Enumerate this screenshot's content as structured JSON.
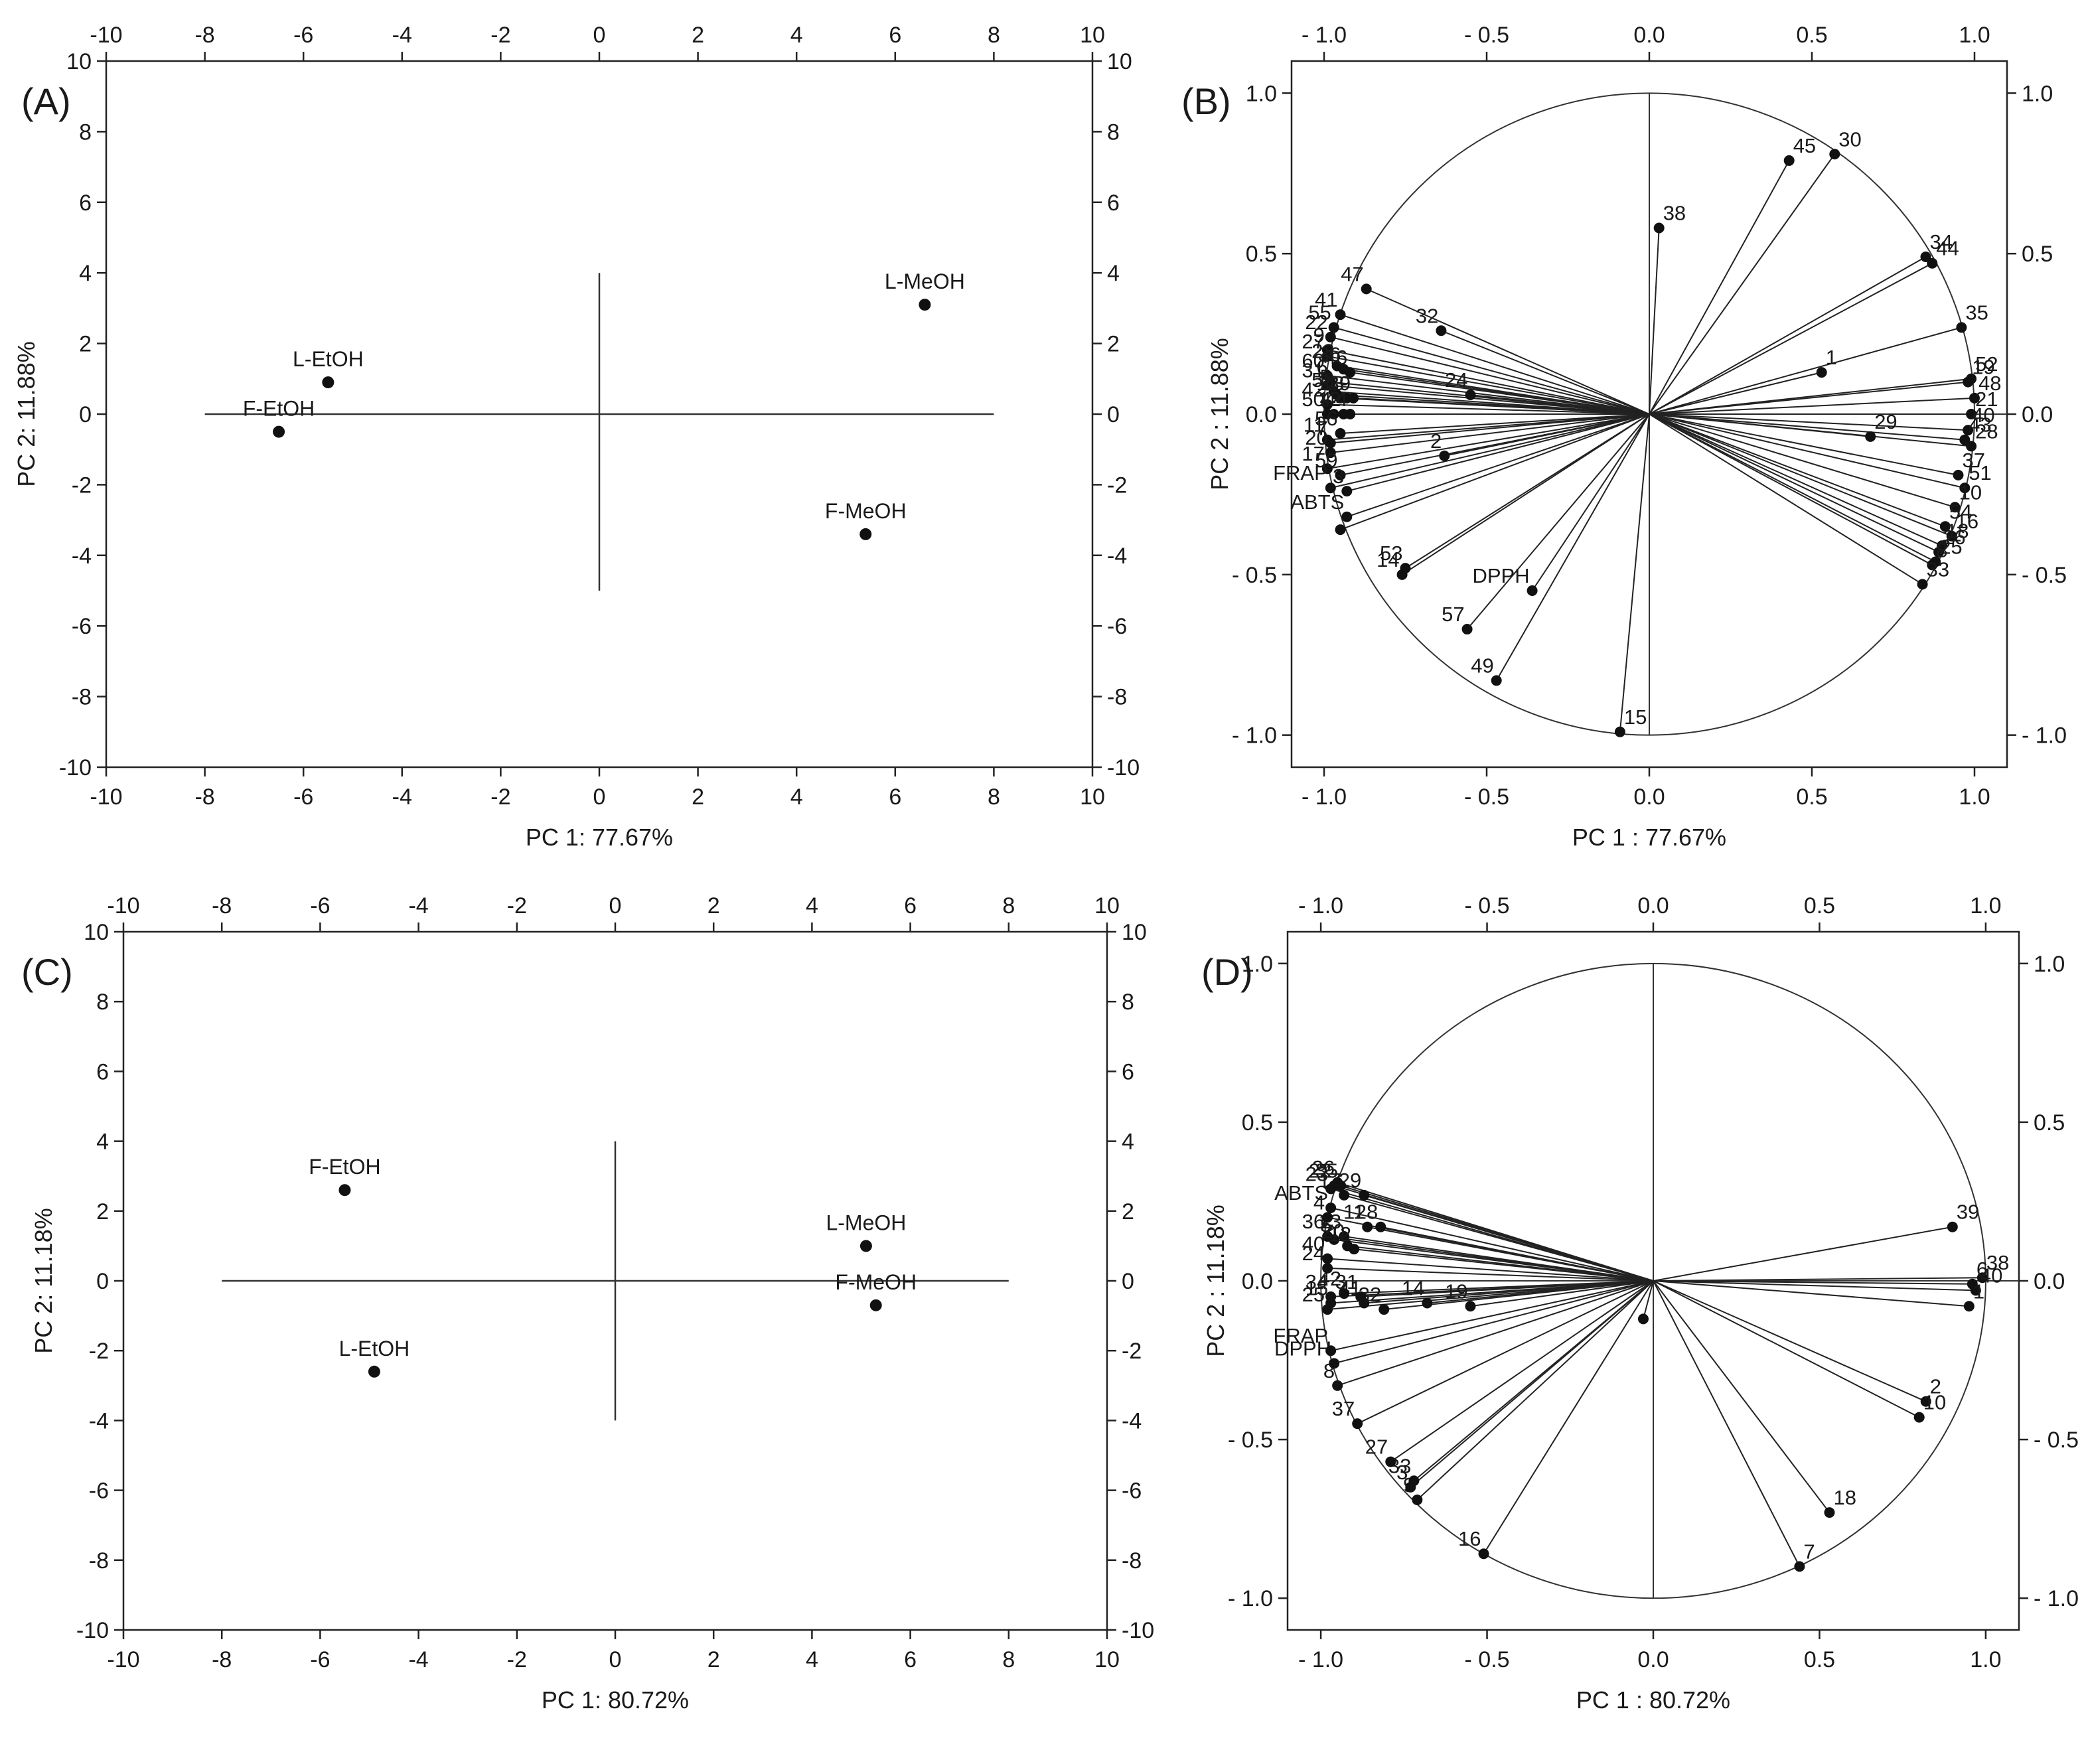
{
  "chart_data": [
    {
      "panel": "(A)",
      "type": "scatter",
      "xlabel": "PC 1: 77.67%",
      "ylabel": "PC 2: 11.88%",
      "xlim": [
        -10,
        10
      ],
      "ylim": [
        -10,
        10
      ],
      "x_ticks": [
        -10,
        -8,
        -6,
        -4,
        -2,
        0,
        2,
        4,
        6,
        8,
        10
      ],
      "y_ticks": [
        -10,
        -8,
        -6,
        -4,
        -2,
        0,
        2,
        4,
        6,
        8,
        10
      ],
      "points": [
        {
          "label": "L-MeOH",
          "x": 6.6,
          "y": 3.1
        },
        {
          "label": "L-EtOH",
          "x": -5.5,
          "y": 0.9
        },
        {
          "label": "F-EtOH",
          "x": -6.5,
          "y": -0.5
        },
        {
          "label": "F-MeOH",
          "x": 5.4,
          "y": -3.4
        }
      ]
    },
    {
      "panel": "(B)",
      "type": "scatter",
      "xlabel": "PC 1 : 77.67%",
      "ylabel": "PC 2 : 11.88%",
      "xlim": [
        -1.1,
        1.1
      ],
      "ylim": [
        -1.1,
        1.1
      ],
      "x_ticks": [
        -1.0,
        -0.5,
        0.0,
        0.5,
        1.0
      ],
      "y_ticks": [
        -1.0,
        -0.5,
        0.0,
        0.5,
        1.0
      ],
      "circle_radius": 1.0,
      "points": [
        {
          "label": "45",
          "x": 0.43,
          "y": 0.79
        },
        {
          "label": "30",
          "x": 0.57,
          "y": 0.81
        },
        {
          "label": "38",
          "x": 0.03,
          "y": 0.58
        },
        {
          "label": "34",
          "x": 0.85,
          "y": 0.49
        },
        {
          "label": "44",
          "x": 0.87,
          "y": 0.47
        },
        {
          "label": "35",
          "x": 0.96,
          "y": 0.27
        },
        {
          "label": "1",
          "x": 0.53,
          "y": 0.13
        },
        {
          "label": "19",
          "x": 0.98,
          "y": 0.1
        },
        {
          "label": "52",
          "x": 0.99,
          "y": 0.11
        },
        {
          "label": "48",
          "x": 1.0,
          "y": 0.05
        },
        {
          "label": "21",
          "x": 0.99,
          "y": 0.0
        },
        {
          "label": "40",
          "x": 0.98,
          "y": -0.05
        },
        {
          "label": "28",
          "x": 0.99,
          "y": -0.1
        },
        {
          "label": "29",
          "x": 0.68,
          "y": -0.07
        },
        {
          "label": "43",
          "x": 0.97,
          "y": -0.08
        },
        {
          "label": "37",
          "x": 0.95,
          "y": -0.19
        },
        {
          "label": "51",
          "x": 0.97,
          "y": -0.23
        },
        {
          "label": "10",
          "x": 0.94,
          "y": -0.29
        },
        {
          "label": "16",
          "x": 0.93,
          "y": -0.38
        },
        {
          "label": "54",
          "x": 0.91,
          "y": -0.35
        },
        {
          "label": "18",
          "x": 0.9,
          "y": -0.41
        },
        {
          "label": "26",
          "x": 0.89,
          "y": -0.43
        },
        {
          "label": "25",
          "x": 0.88,
          "y": -0.46
        },
        {
          "label": "8",
          "x": 0.87,
          "y": -0.47
        },
        {
          "label": "33",
          "x": 0.84,
          "y": -0.53
        },
        {
          "label": "15",
          "x": -0.09,
          "y": -0.99
        },
        {
          "label": "49",
          "x": -0.47,
          "y": -0.83
        },
        {
          "label": "57",
          "x": -0.56,
          "y": -0.67
        },
        {
          "label": "DPPH",
          "x": -0.36,
          "y": -0.55
        },
        {
          "label": "53",
          "x": -0.75,
          "y": -0.48
        },
        {
          "label": "14",
          "x": -0.76,
          "y": -0.5
        },
        {
          "label": "2",
          "x": -0.63,
          "y": -0.13
        },
        {
          "label": "24",
          "x": -0.55,
          "y": 0.06
        },
        {
          "label": "32",
          "x": -0.64,
          "y": 0.26
        },
        {
          "label": "47",
          "x": -0.87,
          "y": 0.39
        },
        {
          "label": "41",
          "x": -0.95,
          "y": 0.31
        },
        {
          "label": "55",
          "x": -0.97,
          "y": 0.27
        },
        {
          "label": "22",
          "x": -0.98,
          "y": 0.24
        },
        {
          "label": "9",
          "x": -0.99,
          "y": 0.2
        },
        {
          "label": "27",
          "x": -0.99,
          "y": 0.18
        },
        {
          "label": "23",
          "x": -0.96,
          "y": 0.15
        },
        {
          "label": "36",
          "x": -0.94,
          "y": 0.14
        },
        {
          "label": "46",
          "x": -0.92,
          "y": 0.13
        },
        {
          "label": "60",
          "x": -0.99,
          "y": 0.12
        },
        {
          "label": "6",
          "x": -0.98,
          "y": 0.1
        },
        {
          "label": "31",
          "x": -0.99,
          "y": 0.09
        },
        {
          "label": "5",
          "x": -0.97,
          "y": 0.07
        },
        {
          "label": "58",
          "x": -0.96,
          "y": 0.06
        },
        {
          "label": "11",
          "x": -0.95,
          "y": 0.05
        },
        {
          "label": "13",
          "x": -0.93,
          "y": 0.05
        },
        {
          "label": "39",
          "x": -0.91,
          "y": 0.05
        },
        {
          "label": "42",
          "x": -0.99,
          "y": 0.03
        },
        {
          "label": "50",
          "x": -0.99,
          "y": 0.0
        },
        {
          "label": "4",
          "x": -0.97,
          "y": 0.0
        },
        {
          "label": "12",
          "x": -0.94,
          "y": 0.0
        },
        {
          "label": "44",
          "x": -0.92,
          "y": 0.0
        },
        {
          "label": "56",
          "x": -0.95,
          "y": -0.06
        },
        {
          "label": "11",
          "x": -0.99,
          "y": -0.08
        },
        {
          "label": "7",
          "x": -0.98,
          "y": -0.09
        },
        {
          "label": "20",
          "x": -0.98,
          "y": -0.12
        },
        {
          "label": "17",
          "x": -0.99,
          "y": -0.17
        },
        {
          "label": "59",
          "x": -0.95,
          "y": -0.19
        },
        {
          "label": "3",
          "x": -0.93,
          "y": -0.24
        },
        {
          "label": "FRAP",
          "x": -0.98,
          "y": -0.23
        },
        {
          "label": "ABTS",
          "x": -0.93,
          "y": -0.32
        },
        {
          "label": "",
          "x": -0.95,
          "y": -0.36
        }
      ]
    },
    {
      "panel": "(C)",
      "type": "scatter",
      "xlabel": "PC 1: 80.72%",
      "ylabel": "PC 2: 11.18%",
      "xlim": [
        -10,
        10
      ],
      "ylim": [
        -10,
        10
      ],
      "x_ticks": [
        -10,
        -8,
        -6,
        -4,
        -2,
        0,
        2,
        4,
        6,
        8,
        10
      ],
      "y_ticks": [
        -10,
        -8,
        -6,
        -4,
        -2,
        0,
        2,
        4,
        6,
        8,
        10
      ],
      "points": [
        {
          "label": "F-EtOH",
          "x": -5.5,
          "y": 2.6
        },
        {
          "label": "L-MeOH",
          "x": 5.1,
          "y": 1.0
        },
        {
          "label": "F-MeOH",
          "x": 5.3,
          "y": -0.7
        },
        {
          "label": "L-EtOH",
          "x": -4.9,
          "y": -2.6
        }
      ]
    },
    {
      "panel": "(D)",
      "type": "scatter",
      "xlabel": "PC 1 : 80.72%",
      "ylabel": "PC 2 : 11.18%",
      "xlim": [
        -1.1,
        1.1
      ],
      "ylim": [
        -1.1,
        1.1
      ],
      "x_ticks": [
        -1.0,
        -0.5,
        0.0,
        0.5,
        1.0
      ],
      "y_ticks": [
        -1.0,
        -0.5,
        0.0,
        0.5,
        1.0
      ],
      "circle_radius": 1.0,
      "points": [
        {
          "label": "39",
          "x": 0.9,
          "y": 0.17
        },
        {
          "label": "38",
          "x": 0.99,
          "y": 0.01
        },
        {
          "label": "6",
          "x": 0.96,
          "y": -0.01
        },
        {
          "label": "40",
          "x": 0.97,
          "y": -0.03
        },
        {
          "label": "1",
          "x": 0.95,
          "y": -0.08
        },
        {
          "label": "2",
          "x": 0.82,
          "y": -0.38
        },
        {
          "label": "10",
          "x": 0.8,
          "y": -0.43
        },
        {
          "label": "18",
          "x": 0.53,
          "y": -0.73
        },
        {
          "label": "7",
          "x": 0.44,
          "y": -0.9
        },
        {
          "label": "16",
          "x": -0.51,
          "y": -0.86
        },
        {
          "label": "9",
          "x": -0.71,
          "y": -0.69
        },
        {
          "label": "3",
          "x": -0.73,
          "y": -0.65
        },
        {
          "label": "33",
          "x": -0.72,
          "y": -0.63
        },
        {
          "label": "27",
          "x": -0.79,
          "y": -0.57
        },
        {
          "label": "37",
          "x": -0.89,
          "y": -0.45
        },
        {
          "label": "8",
          "x": -0.95,
          "y": -0.33
        },
        {
          "label": "DPPH",
          "x": -0.96,
          "y": -0.26
        },
        {
          "label": "FRAP",
          "x": -0.97,
          "y": -0.22
        },
        {
          "label": "",
          "x": -0.03,
          "y": -0.12
        },
        {
          "label": "19",
          "x": -0.55,
          "y": -0.08
        },
        {
          "label": "14",
          "x": -0.68,
          "y": -0.07
        },
        {
          "label": "32",
          "x": -0.81,
          "y": -0.09
        },
        {
          "label": "41",
          "x": -0.87,
          "y": -0.07
        },
        {
          "label": "31",
          "x": -0.88,
          "y": -0.05
        },
        {
          "label": "42",
          "x": -0.93,
          "y": -0.04
        },
        {
          "label": "34",
          "x": -0.97,
          "y": -0.05
        },
        {
          "label": "25",
          "x": -0.98,
          "y": -0.09
        },
        {
          "label": "15",
          "x": -0.97,
          "y": -0.07
        },
        {
          "label": "24",
          "x": -0.98,
          "y": 0.04
        },
        {
          "label": "40",
          "x": -0.98,
          "y": 0.07
        },
        {
          "label": "36",
          "x": -0.98,
          "y": 0.14
        },
        {
          "label": "5",
          "x": -0.96,
          "y": 0.13
        },
        {
          "label": "13",
          "x": -0.93,
          "y": 0.14
        },
        {
          "label": "20",
          "x": -0.92,
          "y": 0.11
        },
        {
          "label": "12",
          "x": -0.9,
          "y": 0.1
        },
        {
          "label": "11",
          "x": -0.86,
          "y": 0.17
        },
        {
          "label": "28",
          "x": -0.82,
          "y": 0.17
        },
        {
          "label": "ABTS",
          "x": -0.97,
          "y": 0.23
        },
        {
          "label": "17",
          "x": -0.93,
          "y": 0.27
        },
        {
          "label": "29",
          "x": -0.87,
          "y": 0.27
        },
        {
          "label": "23",
          "x": -0.97,
          "y": 0.29
        },
        {
          "label": "22",
          "x": -0.96,
          "y": 0.3
        },
        {
          "label": "26",
          "x": -0.95,
          "y": 0.31
        },
        {
          "label": "35",
          "x": -0.94,
          "y": 0.3
        },
        {
          "label": "4",
          "x": -0.98,
          "y": 0.2
        }
      ]
    }
  ]
}
